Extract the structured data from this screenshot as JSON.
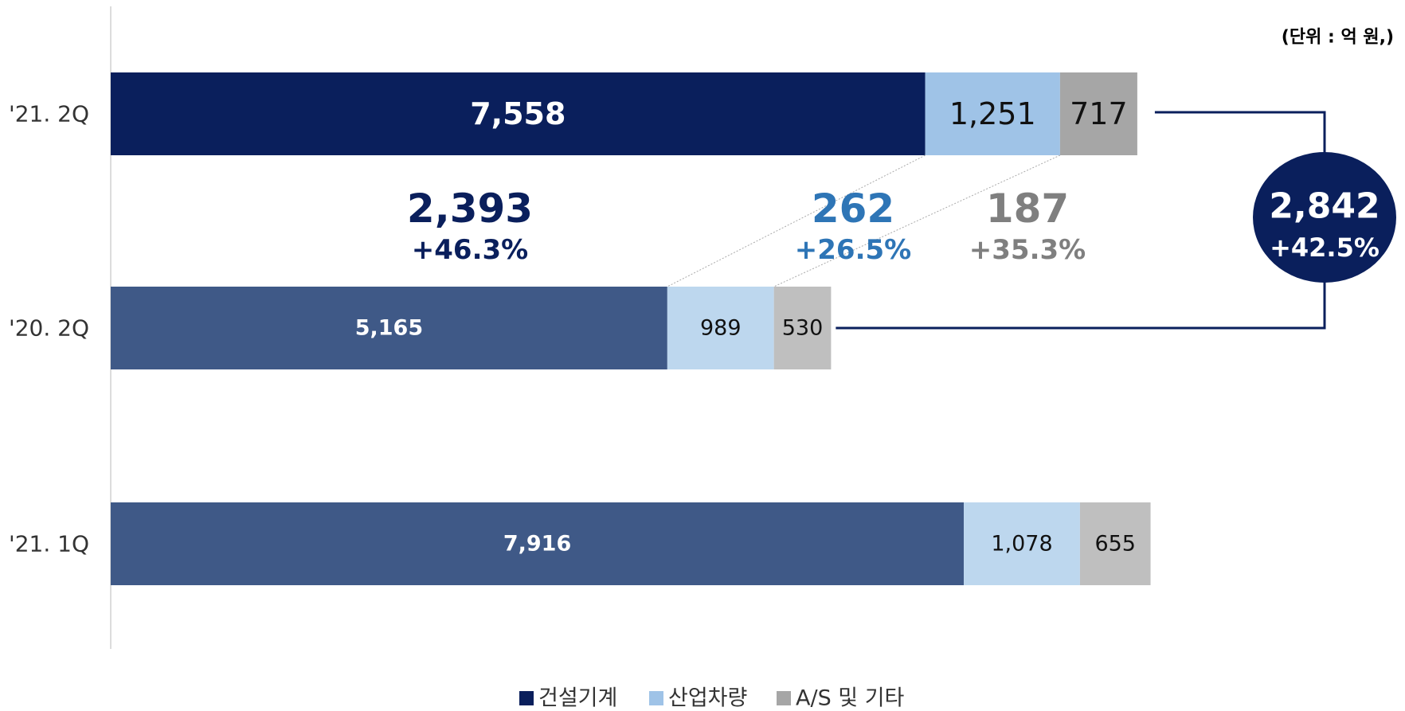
{
  "chart_data": {
    "type": "stacked_barh",
    "unit_note": "(단위 : 억 원,)",
    "categories": [
      "'21. 2Q",
      "'20. 2Q",
      "'21. 1Q"
    ],
    "xlim": [
      0,
      11500
    ],
    "series": [
      {
        "name": "건설기계",
        "color": "#0a1f5c",
        "colors": [
          "#0a1f5c",
          "#3f5987",
          "#3f5987"
        ],
        "values": [
          7558,
          5165,
          7916
        ],
        "value_labels": [
          "7,558",
          "5,165",
          "7,916"
        ]
      },
      {
        "name": "산업차량",
        "color": "#9fc3e7",
        "colors": [
          "#9fc3e7",
          "#bdd7ee",
          "#bdd7ee"
        ],
        "values": [
          1251,
          989,
          1078
        ],
        "value_labels": [
          "1,251",
          "989",
          "1,078"
        ]
      },
      {
        "name": "A/S 및 기타",
        "color": "#a6a6a6",
        "colors": [
          "#a6a6a6",
          "#bfbfbf",
          "#bfbfbf"
        ],
        "values": [
          717,
          530,
          655
        ],
        "value_labels": [
          "717",
          "530",
          "655"
        ]
      }
    ],
    "changes": [
      {
        "value": 2393,
        "label": "2,393",
        "pct": 46.3,
        "pct_label": "+46.3%",
        "color": "#0a1f5c"
      },
      {
        "value": 262,
        "label": "262",
        "pct": 26.5,
        "pct_label": "+26.5%",
        "color": "#2e75b6"
      },
      {
        "value": 187,
        "label": "187",
        "pct": 35.3,
        "pct_label": "+35.3%",
        "color": "#7f7f7f"
      }
    ],
    "total_change": {
      "value": 2842,
      "label": "2,842",
      "pct": 42.5,
      "pct_label": "+42.5%",
      "color": "#0a1f5c"
    }
  }
}
